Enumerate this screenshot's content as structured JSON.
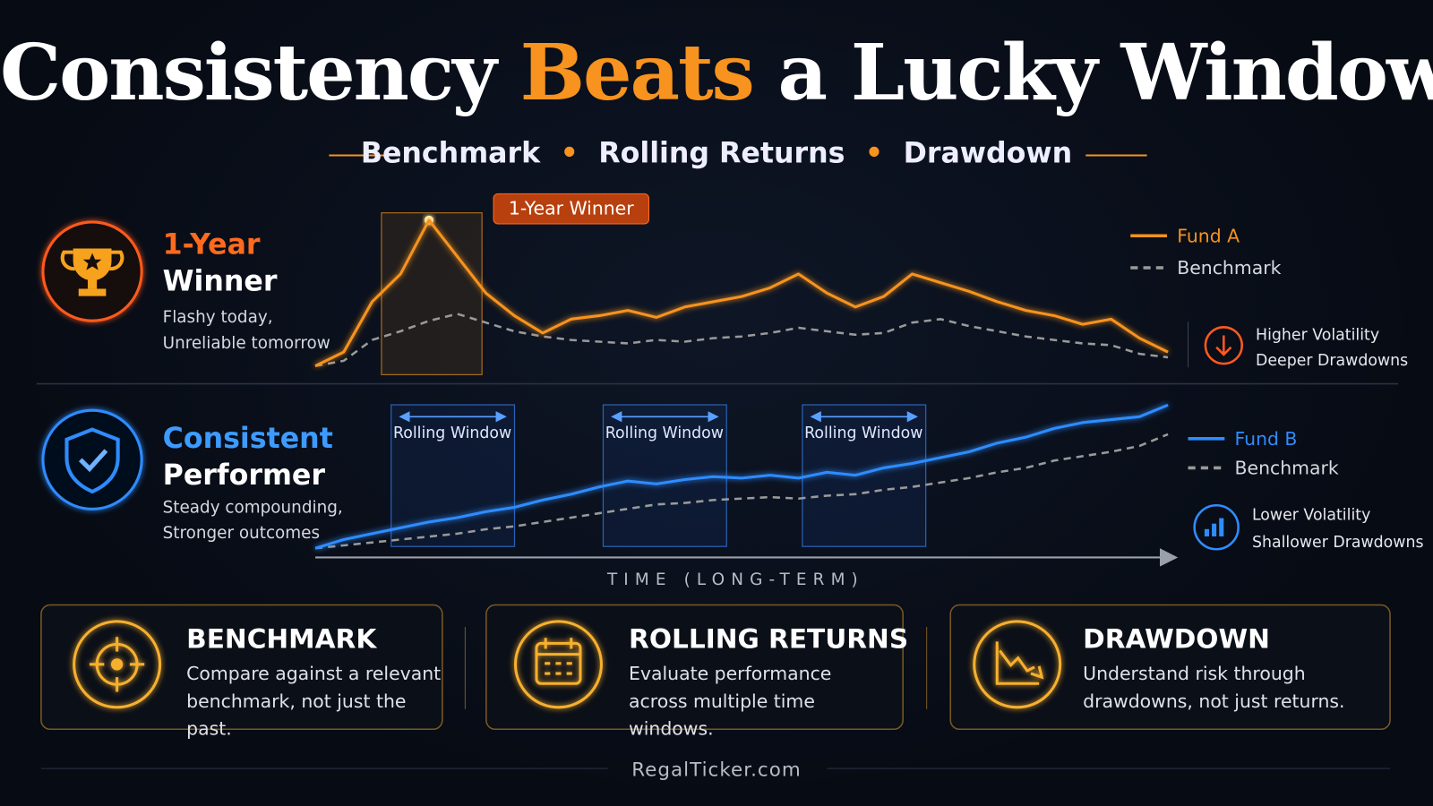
{
  "header": {
    "title_parts": [
      "Consistency",
      "Beats",
      "a Lucky Window"
    ],
    "subtitle_items": [
      "Benchmark",
      "Rolling Returns",
      "Drawdown"
    ]
  },
  "chart_data": [
    {
      "type": "line",
      "label_title": [
        "1-Year",
        "Winner"
      ],
      "label_text": [
        "Flashy today,",
        "Unreliable tomorrow"
      ],
      "annotation": "1-Year Winner",
      "series": [
        {
          "name": "Fund A",
          "color": "#f7931e",
          "values": [
            5,
            13,
            42,
            58,
            89,
            68,
            47,
            34,
            24,
            32,
            34,
            37,
            33,
            39,
            42,
            45,
            50,
            58,
            47,
            39,
            45,
            58,
            53,
            48,
            42,
            37,
            34,
            29,
            32,
            21,
            13
          ]
        },
        {
          "name": "Benchmark",
          "color": "#9a9a9a",
          "values": [
            5,
            8,
            20,
            25,
            31,
            35,
            30,
            25,
            22,
            20,
            19,
            18,
            20,
            19,
            21,
            22,
            24,
            27,
            25,
            23,
            24,
            30,
            32,
            28,
            25,
            22,
            20,
            18,
            17,
            12,
            10
          ]
        }
      ],
      "ylim": [
        0,
        100
      ],
      "note": [
        "Higher Volatility",
        "Deeper Drawdowns"
      ]
    },
    {
      "type": "line",
      "label_title": [
        "Consistent",
        "Performer"
      ],
      "label_text": [
        "Steady compounding,",
        "Stronger outcomes"
      ],
      "windows": [
        "Rolling Window",
        "Rolling Window",
        "Rolling Window"
      ],
      "series": [
        {
          "name": "Fund B",
          "color": "#2f8cff",
          "values": [
            0,
            6,
            10,
            14,
            18,
            21,
            25,
            28,
            33,
            37,
            42,
            46,
            44,
            47,
            49,
            48,
            50,
            48,
            52,
            50,
            55,
            58,
            62,
            66,
            72,
            76,
            82,
            86,
            88,
            90,
            98
          ]
        },
        {
          "name": "Benchmark",
          "color": "#9a9a9a",
          "values": [
            0,
            2,
            4,
            6,
            8,
            10,
            13,
            15,
            18,
            21,
            24,
            27,
            30,
            31,
            33,
            34,
            35,
            34,
            36,
            37,
            40,
            42,
            45,
            48,
            52,
            55,
            60,
            63,
            66,
            70,
            78
          ]
        }
      ],
      "ylim": [
        0,
        100
      ],
      "note": [
        "Lower Volatility",
        "Shallower Drawdowns"
      ]
    }
  ],
  "axis_label": "TIME (LONG-TERM)",
  "cards": [
    {
      "title": "BENCHMARK",
      "text": "Compare against a relevant benchmark, not just the past."
    },
    {
      "title": "ROLLING RETURNS",
      "text": "Evaluate performance across multiple time windows."
    },
    {
      "title": "DRAWDOWN",
      "text": "Understand risk through drawdowns, not just returns."
    }
  ],
  "footer": "RegalTicker.com"
}
